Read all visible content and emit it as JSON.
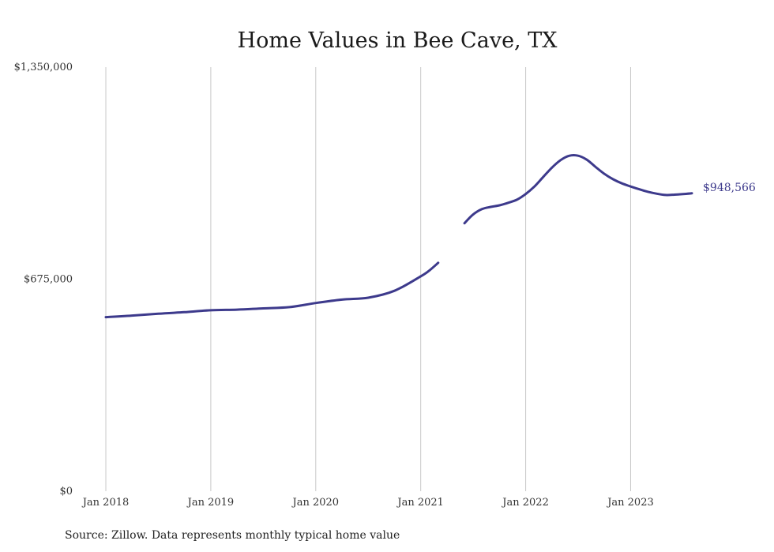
{
  "chart_data": {
    "type": "line",
    "title": "Home Values in Bee Cave, TX",
    "source": "Source: Zillow. Data represents monthly typical home value",
    "xlabel": "",
    "ylabel": "",
    "ylim": [
      0,
      1350000
    ],
    "xlim": [
      "2018-01",
      "2023-08"
    ],
    "y_ticks": [
      {
        "value": 0,
        "label": "$0"
      },
      {
        "value": 675000,
        "label": "$675,000"
      },
      {
        "value": 1350000,
        "label": "$1,350,000"
      }
    ],
    "x_ticks": [
      {
        "value": "2018-01",
        "label": "Jan 2018"
      },
      {
        "value": "2019-01",
        "label": "Jan 2019"
      },
      {
        "value": "2020-01",
        "label": "Jan 2020"
      },
      {
        "value": "2021-01",
        "label": "Jan 2021"
      },
      {
        "value": "2022-01",
        "label": "Jan 2022"
      },
      {
        "value": "2023-01",
        "label": "Jan 2023"
      }
    ],
    "grid": "vertical",
    "end_label": "$948,566",
    "color": "#3d3a8c",
    "series": [
      {
        "segments": [
          [
            [
              "2018-01",
              554000
            ],
            [
              "2018-04",
              559000
            ],
            [
              "2018-07",
              565000
            ],
            [
              "2018-10",
              570000
            ],
            [
              "2019-01",
              576000
            ],
            [
              "2019-04",
              578000
            ],
            [
              "2019-07",
              582000
            ],
            [
              "2019-10",
              586000
            ],
            [
              "2020-01",
              599000
            ],
            [
              "2020-04",
              610000
            ],
            [
              "2020-07",
              616000
            ],
            [
              "2020-10",
              638000
            ],
            [
              "2021-01",
              684000
            ],
            [
              "2021-02",
              703000
            ],
            [
              "2021-03",
              727000
            ]
          ],
          [
            [
              "2021-06",
              853000
            ],
            [
              "2021-07",
              881000
            ],
            [
              "2021-08",
              898000
            ],
            [
              "2021-09",
              905000
            ],
            [
              "2021-10",
              910000
            ],
            [
              "2021-11",
              918000
            ],
            [
              "2021-12",
              928000
            ],
            [
              "2022-01",
              946000
            ],
            [
              "2022-02",
              970000
            ],
            [
              "2022-03",
              1000000
            ],
            [
              "2022-04",
              1030000
            ],
            [
              "2022-05",
              1054000
            ],
            [
              "2022-06",
              1068000
            ],
            [
              "2022-07",
              1068000
            ],
            [
              "2022-08",
              1055000
            ],
            [
              "2022-09",
              1032000
            ],
            [
              "2022-10",
              1010000
            ],
            [
              "2022-11",
              993000
            ],
            [
              "2022-12",
              980000
            ],
            [
              "2023-01",
              970000
            ],
            [
              "2023-02",
              961000
            ],
            [
              "2023-03",
              953000
            ],
            [
              "2023-04",
              947000
            ],
            [
              "2023-05",
              943000
            ],
            [
              "2023-06",
              944000
            ],
            [
              "2023-07",
              946000
            ],
            [
              "2023-08",
              948566
            ]
          ]
        ]
      }
    ]
  }
}
